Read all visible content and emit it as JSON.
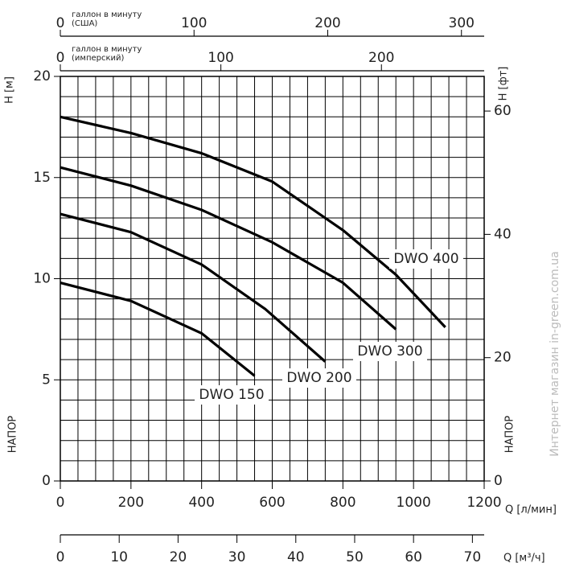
{
  "chart_data": {
    "type": "line",
    "xlabel": "Q [л/мин]",
    "ylabel": "H [м]",
    "y2label": "H [фт]",
    "head_label": "НАПОР",
    "watermark": "Интернет магазин in-green.com.ua",
    "xlim": [
      0,
      1200
    ],
    "xticks": [
      0,
      200,
      400,
      600,
      800,
      1000,
      1200
    ],
    "ylim": [
      0,
      20
    ],
    "yticks": [
      0,
      5,
      10,
      15,
      20
    ],
    "y2lim": [
      0,
      65.62
    ],
    "y2ticks": [
      0,
      20,
      40,
      60
    ],
    "grid": {
      "x_step": 50,
      "y_step": 1
    },
    "secondary_x_axes": [
      {
        "position": "top",
        "label": [
          "галлон в минуту",
          "(США)"
        ],
        "lim": [
          0,
          317
        ],
        "ticks": [
          0,
          100,
          200,
          300
        ]
      },
      {
        "position": "top",
        "label": [
          "галлон в минуту",
          "(имперский)"
        ],
        "lim": [
          0,
          264
        ],
        "ticks": [
          0,
          100,
          200
        ]
      },
      {
        "position": "bottom",
        "label": "Q [м³/ч]",
        "lim": [
          0,
          72
        ],
        "ticks": [
          0,
          10,
          20,
          30,
          40,
          50,
          60,
          70
        ]
      }
    ],
    "series": [
      {
        "name": "DWO 400",
        "color": "#000000",
        "x": [
          0,
          200,
          400,
          600,
          800,
          950,
          1090
        ],
        "values": [
          18,
          17.2,
          16.2,
          14.8,
          12.4,
          10.2,
          7.6
        ]
      },
      {
        "name": "DWO 300",
        "color": "#000000",
        "x": [
          0,
          200,
          400,
          600,
          800,
          950
        ],
        "values": [
          15.5,
          14.6,
          13.4,
          11.8,
          9.8,
          7.5
        ]
      },
      {
        "name": "DWO 200",
        "color": "#000000",
        "x": [
          0,
          200,
          400,
          580,
          750
        ],
        "values": [
          13.2,
          12.3,
          10.7,
          8.5,
          5.9
        ]
      },
      {
        "name": "DWO 150",
        "color": "#000000",
        "x": [
          0,
          200,
          400,
          550
        ],
        "values": [
          9.8,
          8.9,
          7.3,
          5.2
        ]
      }
    ]
  }
}
